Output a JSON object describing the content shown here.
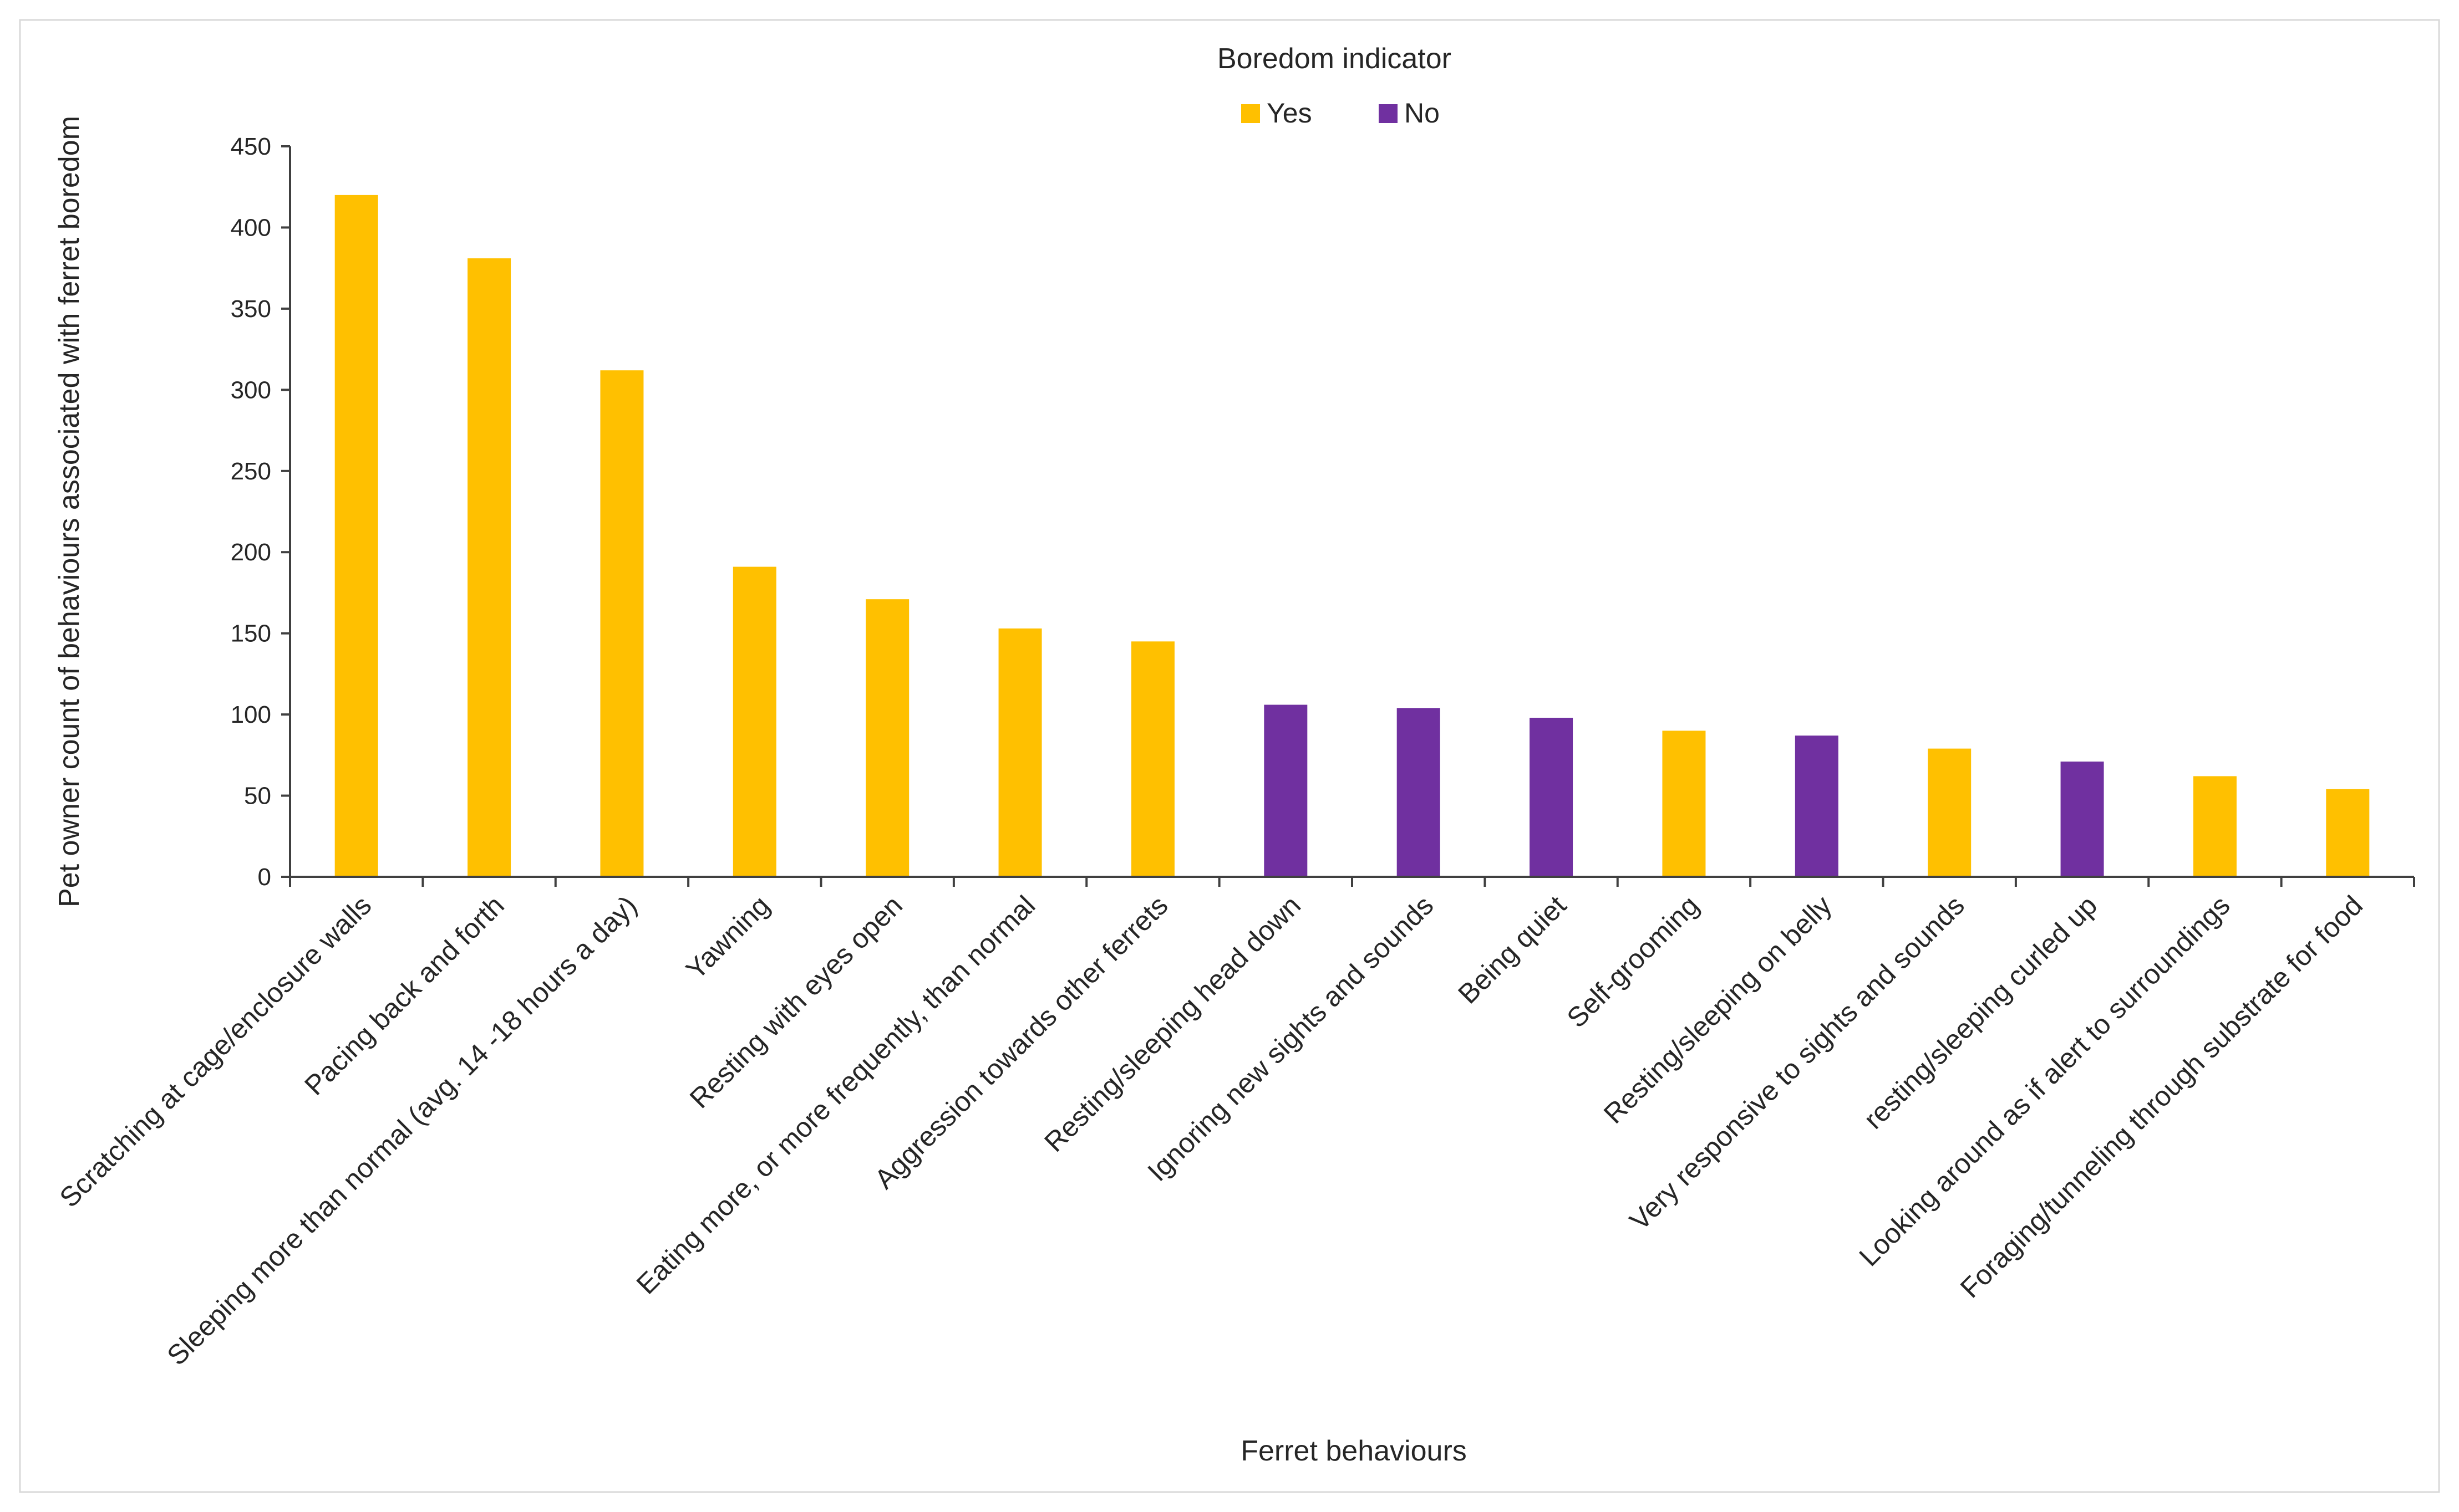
{
  "chart_data": {
    "type": "bar",
    "title": "",
    "xlabel": "Ferret behaviours",
    "ylabel": "Pet owner count of behaviours associated with ferret boredom",
    "ylim": [
      0,
      450
    ],
    "yticks": [
      0,
      50,
      100,
      150,
      200,
      250,
      300,
      350,
      400,
      450
    ],
    "legend": {
      "title": "Boredom indicator",
      "position": "top-center",
      "entries": [
        {
          "name": "Yes",
          "color": "#FFC000"
        },
        {
          "name": "No",
          "color": "#7030A0"
        }
      ]
    },
    "categories": [
      "Scratching at cage/enclosure walls",
      "Pacing back and forth",
      "Sleeping more than normal (avg. 14 -18 hours a day)",
      "Yawning",
      "Resting with eyes open",
      "Eating more, or more frequently, than normal",
      "Aggression towards other ferrets",
      "Resting/sleeping head down",
      "Ignoring new sights and sounds",
      "Being quiet",
      "Self-grooming",
      "Resting/sleeping on belly",
      "Very responsive to sights and sounds",
      "resting/sleeping curled up",
      "Looking around as if alert to surroundings",
      "Foraging/tunneling through substrate for food"
    ],
    "values": [
      420,
      381,
      312,
      191,
      171,
      153,
      145,
      106,
      104,
      98,
      90,
      87,
      79,
      71,
      62,
      54
    ],
    "groups": [
      "Yes",
      "Yes",
      "Yes",
      "Yes",
      "Yes",
      "Yes",
      "Yes",
      "No",
      "No",
      "No",
      "Yes",
      "No",
      "Yes",
      "No",
      "Yes",
      "Yes"
    ]
  }
}
